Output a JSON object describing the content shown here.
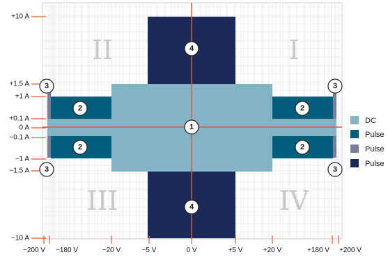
{
  "y_labels": [
    {
      "key": "p10",
      "text": "+10 A"
    },
    {
      "key": "p1_5",
      "text": "+1.5 A"
    },
    {
      "key": "p1",
      "text": "+1 A"
    },
    {
      "key": "p0_1",
      "text": "+0.1 A"
    },
    {
      "key": "z",
      "text": "0 A"
    },
    {
      "key": "m0_1",
      "text": "−0.1 A"
    },
    {
      "key": "m1",
      "text": "−1 A"
    },
    {
      "key": "m1_5",
      "text": "−1.5 A"
    },
    {
      "key": "m10",
      "text": "−10 A"
    }
  ],
  "x_labels": [
    {
      "key": "m200",
      "text": "−200 V"
    },
    {
      "key": "m180",
      "text": "−180 V"
    },
    {
      "key": "m20",
      "text": "−20 V"
    },
    {
      "key": "m5",
      "text": "−5 V"
    },
    {
      "key": "z",
      "text": "0 V"
    },
    {
      "key": "p5",
      "text": "+5 V"
    },
    {
      "key": "p20",
      "text": "+20 V"
    },
    {
      "key": "p180",
      "text": "+180 V"
    },
    {
      "key": "p200",
      "text": "+200 V"
    }
  ],
  "quadrants": [
    {
      "key": "I",
      "text": "I"
    },
    {
      "key": "II",
      "text": "II"
    },
    {
      "key": "III",
      "text": "III"
    },
    {
      "key": "IV",
      "text": "IV"
    }
  ],
  "badges": [
    {
      "key": "b4-top",
      "text": "4"
    },
    {
      "key": "b4-bottom",
      "text": "4"
    },
    {
      "key": "b1-center",
      "text": "1"
    },
    {
      "key": "b2-ul",
      "text": "2"
    },
    {
      "key": "b2-ur",
      "text": "2"
    },
    {
      "key": "b2-ll",
      "text": "2"
    },
    {
      "key": "b2-lr",
      "text": "2"
    },
    {
      "key": "b3-ul",
      "text": "3"
    },
    {
      "key": "b3-ur",
      "text": "3"
    },
    {
      "key": "b3-ll",
      "text": "3"
    },
    {
      "key": "b3-lr",
      "text": "3"
    }
  ],
  "legend": [
    {
      "label": "DC",
      "color": "#83b4c6"
    },
    {
      "label": "Pulse",
      "color": "#005e7d"
    },
    {
      "label": "Pulse",
      "color": "#7b7d9e"
    },
    {
      "label": "Pulse",
      "color": "#1b2a58"
    }
  ],
  "colors": {
    "axis": "#e4572e",
    "dc": "#83b4c6",
    "pulse_teal": "#005e7d",
    "pulse_gray": "#7b7d9e",
    "pulse_navy": "#1b2a58",
    "grid": "#dddddd"
  }
}
